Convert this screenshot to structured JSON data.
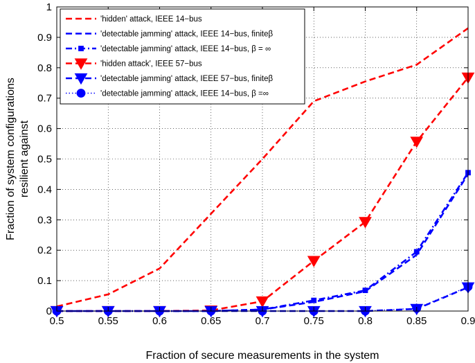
{
  "chart_data": {
    "type": "line",
    "xlabel": "Fraction of secure measurements in the system",
    "ylabel_lines": [
      "Fraction of system configurations",
      "resilient against"
    ],
    "xlim": [
      0.5,
      0.9
    ],
    "ylim": [
      0,
      1
    ],
    "xticks": [
      "0.5",
      "0.55",
      "0.6",
      "0.65",
      "0.7",
      "0.75",
      "0.8",
      "0.85",
      "0.9"
    ],
    "yticks": [
      "0",
      "0.1",
      "0.2",
      "0.3",
      "0.4",
      "0.5",
      "0.6",
      "0.7",
      "0.8",
      "0.9",
      "1"
    ],
    "grid": true,
    "legend_position": "top-left",
    "x": [
      0.5,
      0.55,
      0.6,
      0.65,
      0.7,
      0.75,
      0.8,
      0.85,
      0.9
    ],
    "series": [
      {
        "name": "'hidden' attack, IEEE 14−bus",
        "color": "#ff0000",
        "dash": "dashed",
        "marker": "none",
        "values": [
          0.015,
          0.055,
          0.14,
          0.32,
          0.5,
          0.69,
          0.755,
          0.81,
          0.93
        ]
      },
      {
        "name": "'detectable jamming' attack, IEEE 14−bus, finiteβ",
        "color": "#0000ff",
        "dash": "dashed",
        "marker": "none",
        "values": [
          0,
          0,
          0,
          0,
          0.005,
          0.03,
          0.065,
          0.185,
          0.45
        ]
      },
      {
        "name": "'detectable jamming' attack, IEEE 14−bus,  β = ∞",
        "color": "#0000ff",
        "dash": "dashdot",
        "marker": "square",
        "values": [
          0,
          0,
          0,
          0,
          0.005,
          0.035,
          0.068,
          0.195,
          0.455
        ]
      },
      {
        "name": "'hidden attack', IEEE 57−bus",
        "color": "#ff0000",
        "dash": "dashed",
        "marker": "triangle-down",
        "values": [
          0,
          0,
          0,
          0.002,
          0.032,
          0.165,
          0.293,
          0.557,
          0.768
        ]
      },
      {
        "name": "'detectable jamming' attack, IEEE 57−bus, finiteβ",
        "color": "#0000ff",
        "dash": "dashed",
        "marker": "triangle-down",
        "values": [
          0,
          0,
          0,
          0,
          0,
          0,
          0,
          0.007,
          0.078
        ]
      },
      {
        "name": "'detectable jamming' attack, IEEE 14−bus, β =∞",
        "color": "#0000ff",
        "dash": "dotted",
        "marker": "circle",
        "values": [
          0,
          0,
          0,
          0,
          0,
          0,
          0,
          0.009,
          0.08
        ]
      }
    ]
  }
}
